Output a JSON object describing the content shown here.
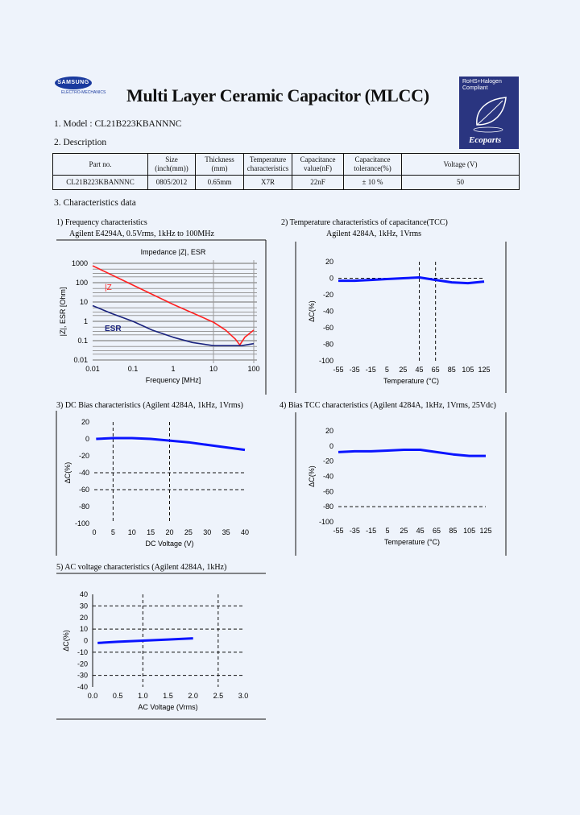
{
  "header": {
    "logo_text": "SAMSUNG",
    "logo_sub": "ELECTRO-MECHANICS",
    "title": "Multi Layer Ceramic Capacitor (MLCC)",
    "badge_text": "RoHS+Halogen Compliant",
    "badge_brand": "Ecoparts",
    "badge_color": "#2a3580"
  },
  "model": "1. Model : CL21B223KBANNNC",
  "description_heading": "2. Description",
  "table": {
    "headers": [
      "Part no.",
      "Size (inch(mm))",
      "Thickness (mm)",
      "Temperature characteristics",
      "Capacitance value(nF)",
      "Capacitance tolerance(%)",
      "Voltage (V)"
    ],
    "row": [
      "CL21B223KBANNNC",
      "0805/2012",
      "0.65mm",
      "X7R",
      "22nF",
      "± 10 %",
      "50"
    ]
  },
  "characteristics_heading": "3. Characteristics data",
  "chart_data": [
    {
      "type": "line",
      "heading": "1) Frequency characteristics",
      "subheading": "Agilent E4294A, 0.5Vrms, 1kHz to 100MHz",
      "title": "Impedance |Z|, ESR",
      "xlabel": "Frequency [MHz]",
      "ylabel": "|Z|, ESR [Ohm]",
      "xscale": "log",
      "yscale": "log",
      "xlim": [
        0.01,
        100
      ],
      "ylim": [
        0.01,
        1000
      ],
      "xticks": [
        "0.01",
        "0.1",
        "1",
        "10",
        "100"
      ],
      "yticks": [
        "0.01",
        "0.1",
        "1",
        "10",
        "100",
        "1000"
      ],
      "grid": true,
      "series": [
        {
          "name": "|Z",
          "color": "#ff2020",
          "x": [
            0.01,
            0.1,
            1,
            10,
            20,
            35,
            45,
            60,
            100
          ],
          "y": [
            750,
            75,
            7.5,
            0.9,
            0.35,
            0.12,
            0.06,
            0.15,
            0.35
          ]
        },
        {
          "name": "ESR",
          "color": "#1a237e",
          "x": [
            0.01,
            0.03,
            0.1,
            0.3,
            1,
            3,
            10,
            50,
            100
          ],
          "y": [
            6.5,
            2.5,
            1.0,
            0.35,
            0.15,
            0.08,
            0.055,
            0.055,
            0.07
          ]
        }
      ]
    },
    {
      "type": "line",
      "heading": "2) Temperature characteristics of capacitance(TCC)",
      "subheading": "Agilent 4284A, 1kHz, 1Vrms",
      "xlabel": "Temperature (°C)",
      "ylabel": "ΔC(%)",
      "xlim": [
        -55,
        125
      ],
      "ylim": [
        -100,
        20
      ],
      "xticks": [
        "-55",
        "-35",
        "-15",
        "5",
        "25",
        "45",
        "65",
        "85",
        "105",
        "125"
      ],
      "yticks": [
        "-100",
        "-80",
        "-60",
        "-40",
        "-20",
        "0",
        "20"
      ],
      "dashed_x": [
        45,
        65
      ],
      "dashed_y": [
        0
      ],
      "series": [
        {
          "color": "#0a14ff",
          "x": [
            -55,
            -35,
            -15,
            5,
            25,
            45,
            65,
            85,
            105,
            125
          ],
          "y": [
            -3,
            -3,
            -2,
            -1,
            0,
            1,
            -2,
            -5,
            -6,
            -4
          ]
        }
      ]
    },
    {
      "type": "line",
      "heading": "3) DC Bias characteristics (Agilent 4284A, 1kHz, 1Vrms)",
      "xlabel": "DC Voltage (V)",
      "ylabel": "ΔC(%)",
      "xlim": [
        0,
        40
      ],
      "ylim": [
        -100,
        20
      ],
      "xticks": [
        "0",
        "5",
        "10",
        "15",
        "20",
        "25",
        "30",
        "35",
        "40"
      ],
      "yticks": [
        "-100",
        "-80",
        "-60",
        "-40",
        "-20",
        "0",
        "20"
      ],
      "dashed_x": [
        5,
        20
      ],
      "dashed_y": [
        -40,
        -60
      ],
      "series": [
        {
          "color": "#0a14ff",
          "x": [
            0.5,
            5,
            10,
            15,
            20,
            25,
            30,
            35,
            40
          ],
          "y": [
            0,
            1,
            1,
            0,
            -2,
            -4,
            -7,
            -10,
            -13
          ]
        }
      ]
    },
    {
      "type": "line",
      "heading": "4) Bias TCC characteristics (Agilent 4284A, 1kHz, 1Vrms, 25Vdc)",
      "xlabel": "Temperature (°C)",
      "ylabel": "ΔC(%)",
      "xlim": [
        -55,
        125
      ],
      "ylim": [
        -100,
        20
      ],
      "xticks": [
        "-55",
        "-35",
        "-15",
        "5",
        "25",
        "45",
        "65",
        "85",
        "105",
        "125"
      ],
      "yticks": [
        "-100",
        "-80",
        "-60",
        "-40",
        "-20",
        "0",
        "20"
      ],
      "dashed_x": [],
      "dashed_y": [
        -80
      ],
      "series": [
        {
          "color": "#0a14ff",
          "x": [
            -55,
            -35,
            -15,
            5,
            25,
            45,
            65,
            85,
            105,
            125
          ],
          "y": [
            -8,
            -7,
            -7,
            -6,
            -5,
            -5,
            -8,
            -11,
            -13,
            -13
          ]
        }
      ]
    },
    {
      "type": "line",
      "heading": "5) AC voltage characteristics (Agilent 4284A, 1kHz)",
      "xlabel": "AC Voltage (Vrms)",
      "ylabel": "ΔC(%)",
      "xlim": [
        0,
        3
      ],
      "ylim": [
        -40,
        40
      ],
      "xticks": [
        "0.0",
        "0.5",
        "1.0",
        "1.5",
        "2.0",
        "2.5",
        "3.0"
      ],
      "yticks": [
        "-40",
        "-30",
        "-20",
        "-10",
        "0",
        "10",
        "20",
        "30",
        "40"
      ],
      "dashed_x": [
        1.0,
        2.5
      ],
      "dashed_y": [
        30,
        10,
        -10,
        -30
      ],
      "series": [
        {
          "color": "#0a14ff",
          "x": [
            0.1,
            0.5,
            1.0,
            1.5,
            2.0
          ],
          "y": [
            -2,
            -1,
            0,
            1,
            2
          ]
        }
      ]
    }
  ]
}
